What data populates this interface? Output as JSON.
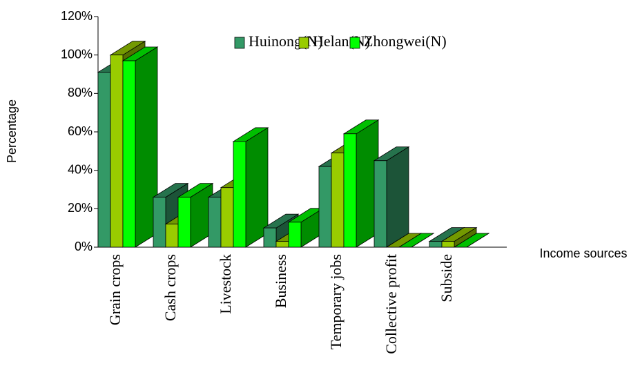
{
  "chart_data": {
    "type": "bar3d",
    "y_label": "Percentage",
    "x_label": "Income sources",
    "categories": [
      "Grain crops",
      "Cash crops",
      "Livestock",
      "Business",
      "Temporary jobs",
      "Collective profit",
      "Subside"
    ],
    "series": [
      {
        "name": "Huinong(N)",
        "color": "#339966",
        "values": [
          91,
          26,
          26,
          10,
          42,
          45,
          3
        ]
      },
      {
        "name": "Helan(N)",
        "color": "#99cc00",
        "values": [
          100,
          12,
          31,
          3,
          49,
          0,
          3
        ]
      },
      {
        "name": "Zhongwei(N)",
        "color": "#00ff00",
        "values": [
          97,
          26,
          55,
          13,
          59,
          0,
          0
        ]
      }
    ],
    "ylim": [
      0,
      120
    ],
    "yticks": [
      {
        "value": 0,
        "label": "0%"
      },
      {
        "value": 20,
        "label": "20%"
      },
      {
        "value": 40,
        "label": "40%"
      },
      {
        "value": 60,
        "label": "60%"
      },
      {
        "value": 80,
        "label": "80%"
      },
      {
        "value": 100,
        "label": "100%"
      },
      {
        "value": 120,
        "label": "120%"
      }
    ],
    "legend": "upper right"
  }
}
